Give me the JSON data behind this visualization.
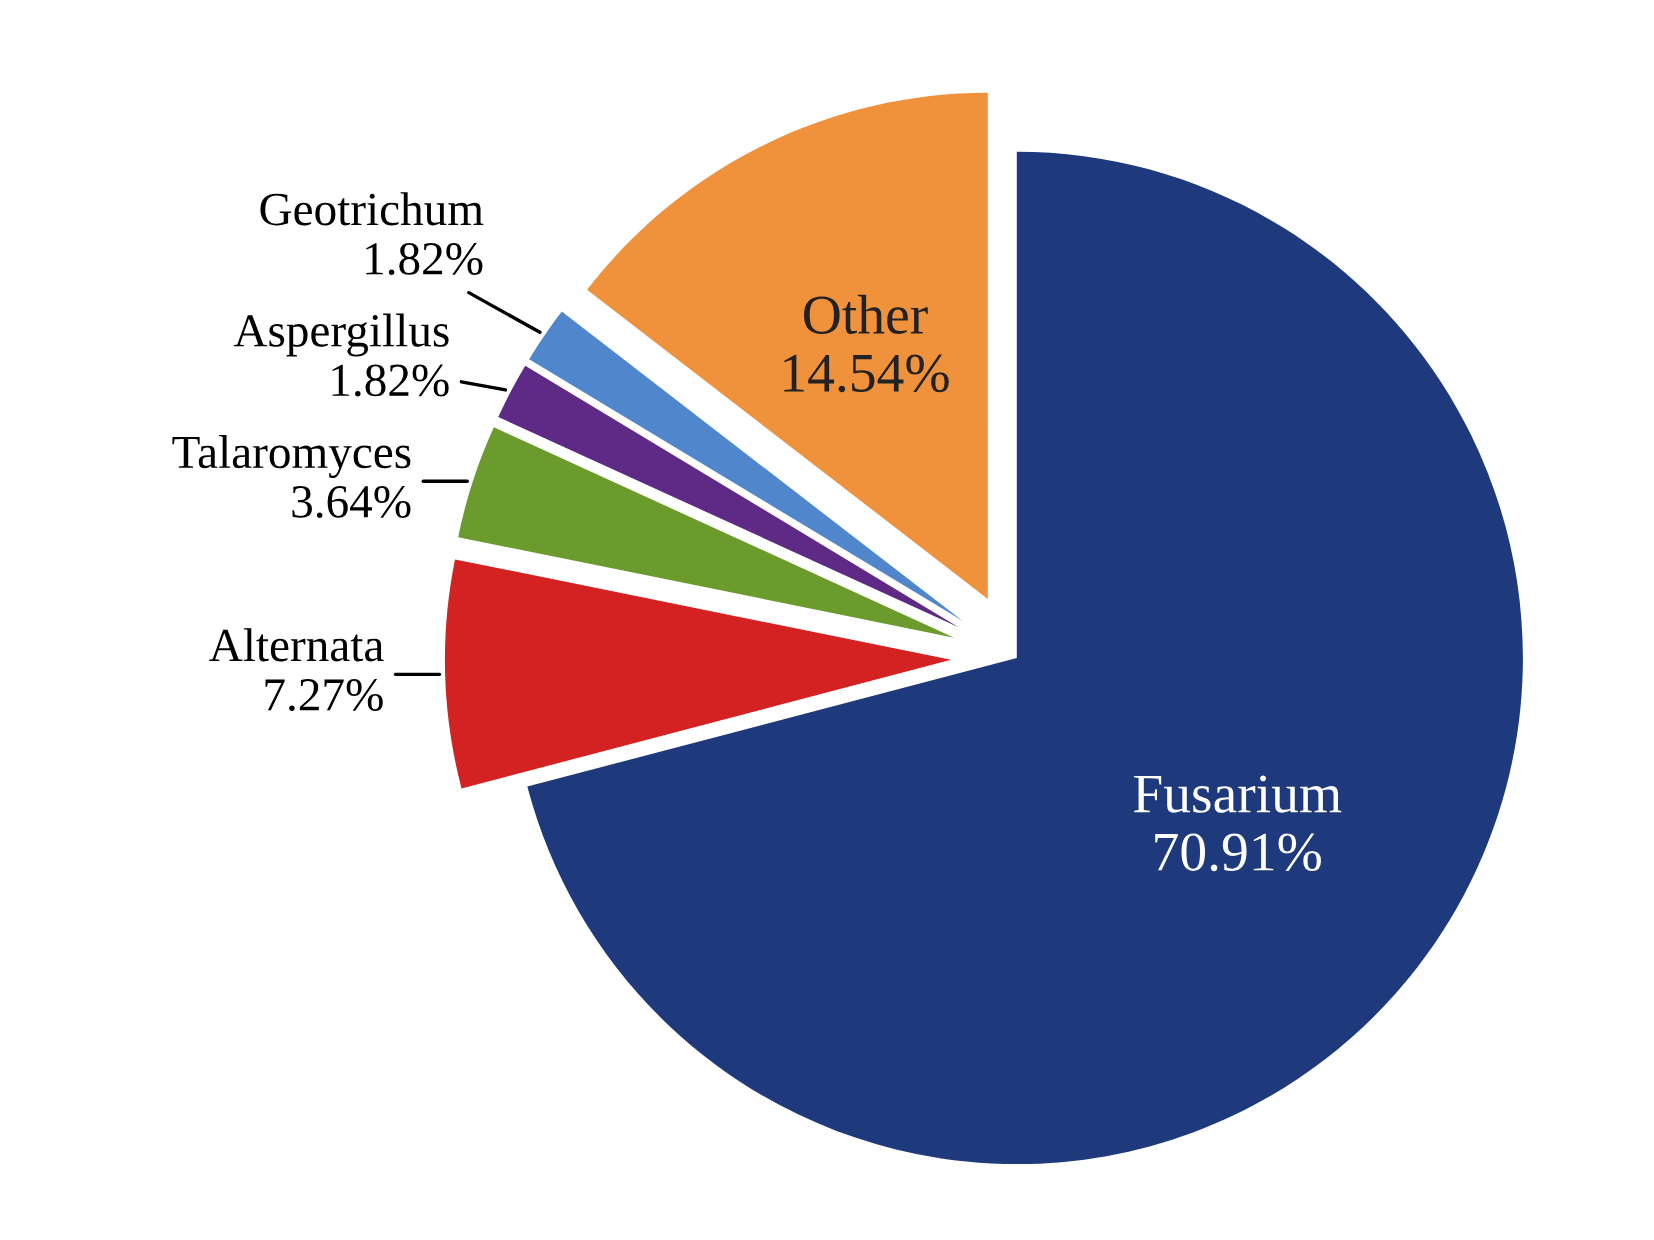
{
  "chart_data": {
    "type": "pie",
    "categories": [
      "Fusarium",
      "Alternata",
      "Talaromyces",
      "Aspergillus",
      "Geotrichum",
      "Other"
    ],
    "values": [
      70.91,
      7.27,
      3.64,
      1.82,
      1.82,
      14.54
    ],
    "colors": [
      "#1e3a7c",
      "#d42222",
      "#6a9b2c",
      "#5e2a86",
      "#4f86cc",
      "#f0913c"
    ],
    "value_labels": [
      "70.91%",
      "7.27%",
      "3.64%",
      "1.82%",
      "1.82%",
      "14.54%"
    ],
    "legend": false
  }
}
